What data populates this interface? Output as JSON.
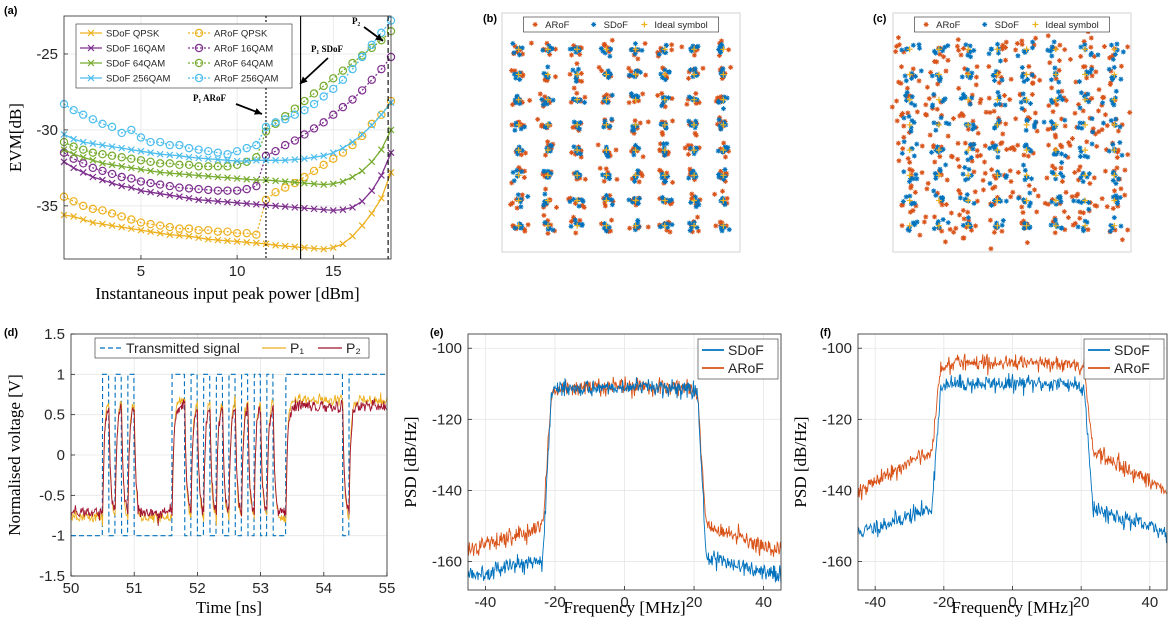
{
  "figure": {
    "panels": [
      "(a)",
      "(b)",
      "(c)",
      "(d)",
      "(e)",
      "(f)"
    ]
  },
  "chart_data": [
    {
      "id": "a",
      "type": "line",
      "panel_label": "(a)",
      "xlabel": "Instantaneous input peak power [dBm]",
      "ylabel": "EVM[dB]",
      "xlim": [
        1,
        18
      ],
      "ylim": [
        -38.5,
        -22.5
      ],
      "xticks": [
        5,
        10,
        15
      ],
      "yticks": [
        -25,
        -30,
        -35
      ],
      "legend_position": "top-left",
      "legend_columns": 2,
      "grid": true,
      "x": [
        1,
        1.5,
        2,
        2.5,
        3,
        3.5,
        4,
        4.5,
        5,
        5.5,
        6,
        6.5,
        7,
        7.5,
        8,
        8.5,
        9,
        9.5,
        10,
        10.5,
        11,
        11.5,
        12,
        12.5,
        13,
        13.5,
        14,
        14.5,
        15,
        15.5,
        16,
        16.5,
        17,
        17.5,
        18
      ],
      "series": [
        {
          "name": "SDoF QPSK",
          "color": "#EDB120",
          "style": "solid",
          "marker": "x",
          "values": [
            -35.6,
            -35.7,
            -35.9,
            -36.1,
            -36.2,
            -36.3,
            -36.4,
            -36.5,
            -36.6,
            -36.7,
            -36.8,
            -36.9,
            -36.95,
            -37,
            -37.1,
            -37.2,
            -37.25,
            -37.3,
            -37.35,
            -37.4,
            -37.45,
            -37.5,
            -37.6,
            -37.65,
            -37.7,
            -37.75,
            -37.8,
            -37.85,
            -37.75,
            -37.5,
            -37,
            -36.3,
            -35.5,
            -34.5,
            -32.8
          ]
        },
        {
          "name": "ARoF QPSK",
          "color": "#EDB120",
          "style": "dotted",
          "marker": "o",
          "values": [
            -34.4,
            -34.7,
            -35,
            -35.2,
            -35.3,
            -35.5,
            -35.7,
            -35.9,
            -36.1,
            -36.2,
            -36.3,
            -36.4,
            -36.5,
            -36.5,
            -36.6,
            -36.6,
            -36.7,
            -36.7,
            -36.8,
            -36.8,
            -36.9,
            -34.6,
            -34.1,
            -33.8,
            -33.5,
            -33.1,
            -32.7,
            -32.3,
            -31.9,
            -31.5,
            -31,
            -30.4,
            -29.6,
            -29,
            -28.1
          ]
        },
        {
          "name": "SDoF 16QAM",
          "color": "#7E2F8E",
          "style": "solid",
          "marker": "x",
          "values": [
            -32.1,
            -32.5,
            -32.8,
            -33.1,
            -33.3,
            -33.5,
            -33.7,
            -33.8,
            -34,
            -34.1,
            -34.2,
            -34.3,
            -34.4,
            -34.5,
            -34.6,
            -34.65,
            -34.7,
            -34.75,
            -34.8,
            -34.85,
            -34.9,
            -34.95,
            -35,
            -35.05,
            -35.1,
            -35.15,
            -35.2,
            -35.25,
            -35.3,
            -35.25,
            -35.1,
            -34.7,
            -34,
            -33,
            -31.5
          ]
        },
        {
          "name": "ARoF 16QAM",
          "color": "#7E2F8E",
          "style": "dotted",
          "marker": "o",
          "values": [
            -31.5,
            -31.9,
            -32.2,
            -32.5,
            -32.7,
            -32.9,
            -33.1,
            -33.2,
            -33.4,
            -33.5,
            -33.6,
            -33.7,
            -33.8,
            -33.85,
            -33.9,
            -33.95,
            -34,
            -34,
            -34,
            -33.9,
            -33.7,
            -31.7,
            -31.4,
            -31,
            -30.7,
            -30.3,
            -29.9,
            -29.5,
            -29,
            -28.5,
            -28,
            -27.4,
            -26.7,
            -26,
            -25.2
          ]
        },
        {
          "name": "SDoF 64QAM",
          "color": "#77AC30",
          "style": "solid",
          "marker": "x",
          "values": [
            -31.3,
            -31.6,
            -31.8,
            -32,
            -32.2,
            -32.3,
            -32.4,
            -32.5,
            -32.6,
            -32.7,
            -32.8,
            -32.85,
            -32.9,
            -32.95,
            -33,
            -33.05,
            -33.1,
            -33.15,
            -33.2,
            -33.25,
            -33.3,
            -33.3,
            -33.35,
            -33.4,
            -33.45,
            -33.5,
            -33.55,
            -33.6,
            -33.55,
            -33.4,
            -33.1,
            -32.7,
            -32.1,
            -31.3,
            -30
          ]
        },
        {
          "name": "ARoF 64QAM",
          "color": "#77AC30",
          "style": "dotted",
          "marker": "o",
          "values": [
            -30.8,
            -31.1,
            -31.3,
            -31.5,
            -31.6,
            -31.7,
            -31.8,
            -31.9,
            -32,
            -32.1,
            -32.2,
            -32.2,
            -32.3,
            -32.3,
            -32.4,
            -32.4,
            -32.4,
            -32.4,
            -32.3,
            -32.1,
            -31.8,
            -30.1,
            -29.6,
            -29.1,
            -28.6,
            -28.1,
            -27.6,
            -27.1,
            -26.6,
            -26.1,
            -25.6,
            -25.1,
            -24.6,
            -24.1,
            -23.5
          ]
        },
        {
          "name": "SDoF 256QAM",
          "color": "#4DBEEE",
          "style": "solid",
          "marker": "x",
          "values": [
            -30.3,
            -30.6,
            -30.8,
            -30.9,
            -31,
            -31.1,
            -31.2,
            -31.3,
            -31.4,
            -31.5,
            -31.6,
            -31.65,
            -31.7,
            -31.8,
            -31.85,
            -31.9,
            -31.95,
            -32,
            -32.05,
            -32.05,
            -32,
            -32,
            -32,
            -32,
            -31.95,
            -31.9,
            -31.8,
            -31.7,
            -31.5,
            -31.2,
            -30.8,
            -30.3,
            -29.7,
            -29,
            -28.2
          ]
        },
        {
          "name": "ARoF 256QAM",
          "color": "#4DBEEE",
          "style": "dotted",
          "marker": "o",
          "values": [
            -28.3,
            -28.7,
            -29,
            -29.3,
            -29.6,
            -29.8,
            -30.2,
            -30,
            -30.5,
            -30.8,
            -30.8,
            -31,
            -31,
            -31.2,
            -31.3,
            -31.4,
            -31.5,
            -31.6,
            -31.4,
            -31.2,
            -31,
            -29.8,
            -29.5,
            -29.3,
            -29,
            -28.7,
            -28.3,
            -27.8,
            -27.3,
            -26.7,
            -26,
            -25.2,
            -24.4,
            -23.6,
            -22.8
          ]
        }
      ],
      "vlines": [
        {
          "x": 11.5,
          "style": "dotted",
          "label": "P₁ ARoF"
        },
        {
          "x": 13.3,
          "style": "solid",
          "label": "P₁ SDoF"
        },
        {
          "x": 17.85,
          "style": "dashed",
          "label": "P₂"
        }
      ]
    },
    {
      "id": "b",
      "type": "scatter",
      "panel_label": "(b)",
      "grid_levels": [
        -7,
        -5,
        -3,
        -1,
        1,
        3,
        5,
        7
      ],
      "legend_position": "top",
      "series": [
        {
          "name": "ARoF",
          "color": "#D95319",
          "marker": "*",
          "spread": 0.28
        },
        {
          "name": "SDoF",
          "color": "#0072BD",
          "marker": "*",
          "spread": 0.2
        },
        {
          "name": "Ideal symbol",
          "color": "#EDB120",
          "marker": "+",
          "spread": 0
        }
      ]
    },
    {
      "id": "c",
      "type": "scatter",
      "panel_label": "(c)",
      "grid_levels": [
        -7,
        -5,
        -3,
        -1,
        1,
        3,
        5,
        7
      ],
      "legend_position": "top",
      "series": [
        {
          "name": "ARoF",
          "color": "#D95319",
          "marker": "*",
          "spread": 0.6
        },
        {
          "name": "SDoF",
          "color": "#0072BD",
          "marker": "*",
          "spread": 0.28
        },
        {
          "name": "Ideal symbol",
          "color": "#EDB120",
          "marker": "+",
          "spread": 0
        }
      ]
    },
    {
      "id": "d",
      "type": "line",
      "panel_label": "(d)",
      "xlabel": "Time [ns]",
      "ylabel": "Normalised voltage [V]",
      "xlim": [
        50,
        55
      ],
      "ylim": [
        -1.5,
        1.5
      ],
      "xticks": [
        50,
        51,
        52,
        53,
        54,
        55
      ],
      "yticks": [
        -1.5,
        -1,
        -0.5,
        0,
        0.5,
        1,
        1.5
      ],
      "legend_position": "top",
      "grid": true,
      "bit_boundaries_ns": [
        50.5,
        50.6,
        50.7,
        50.8,
        50.9,
        51.0,
        51.6,
        51.8,
        51.9,
        52.0,
        52.1,
        52.2,
        52.3,
        52.4,
        52.5,
        52.6,
        52.7,
        52.8,
        52.9,
        53.0,
        53.1,
        53.2,
        53.4,
        54.3,
        54.4
      ],
      "series": [
        {
          "name": "Transmitted signal",
          "color": "#0072BD",
          "style": "dashed",
          "high": 1,
          "low": -1
        },
        {
          "name": "P₁",
          "color": "#EDB120",
          "style": "solid",
          "high": 0.68,
          "low": -0.78
        },
        {
          "name": "P₂",
          "color": "#A2142F",
          "style": "solid",
          "high": 0.6,
          "low": -0.72
        }
      ]
    },
    {
      "id": "e",
      "type": "line",
      "panel_label": "(e)",
      "xlabel": "Frequency [MHz]",
      "ylabel": "PSD [dB/Hz]",
      "xlim": [
        -45,
        45
      ],
      "ylim": [
        -168,
        -96
      ],
      "xticks": [
        -40,
        -20,
        0,
        20,
        40
      ],
      "yticks": [
        -100,
        -120,
        -140,
        -160
      ],
      "legend_position": "top-right",
      "grid": true,
      "series": [
        {
          "name": "SDoF",
          "color": "#0072BD",
          "in_band_db": -111,
          "edge_db": -159,
          "far_db": -164
        },
        {
          "name": "ARoF",
          "color": "#D95319",
          "in_band_db": -111,
          "edge_db": -150,
          "far_db": -157
        }
      ]
    },
    {
      "id": "f",
      "type": "line",
      "panel_label": "(f)",
      "xlabel": "Frequency [MHz]",
      "ylabel": "PSD [dB/Hz]",
      "xlim": [
        -45,
        45
      ],
      "ylim": [
        -168,
        -96
      ],
      "xticks": [
        -40,
        -20,
        0,
        20,
        40
      ],
      "yticks": [
        -100,
        -120,
        -140,
        -160
      ],
      "legend_position": "top-right",
      "grid": true,
      "series": [
        {
          "name": "SDoF",
          "color": "#0072BD",
          "in_band_db": -110,
          "edge_db": -145,
          "far_db": -152
        },
        {
          "name": "ARoF",
          "color": "#D95319",
          "in_band_db": -104,
          "edge_db": -129,
          "far_db": -140
        }
      ]
    }
  ]
}
